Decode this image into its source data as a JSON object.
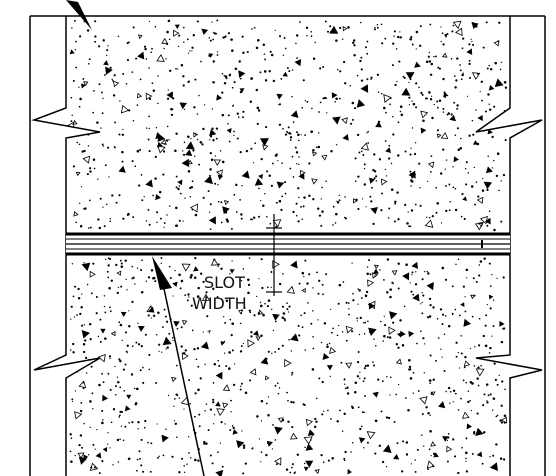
{
  "annotation": {
    "line1": "SLOT",
    "line2": "WIDTH"
  },
  "colors": {
    "ink": "#000000",
    "paper": "#ffffff",
    "slot_fill": "#e6e6e6"
  }
}
